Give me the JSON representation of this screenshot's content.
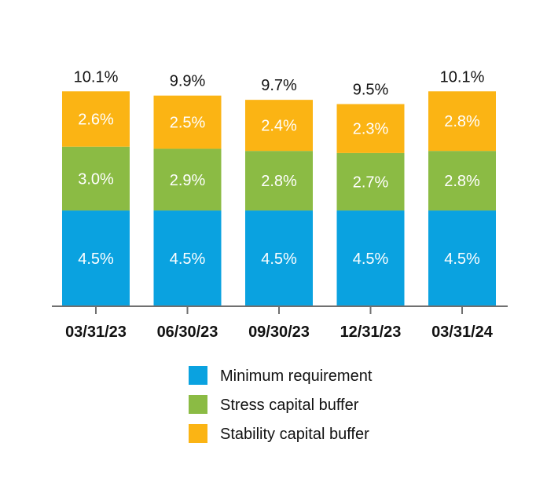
{
  "chart_data": {
    "type": "bar",
    "stacked": true,
    "categories": [
      "03/31/23",
      "06/30/23",
      "09/30/23",
      "12/31/23",
      "03/31/24"
    ],
    "series": [
      {
        "name": "Minimum requirement",
        "color": "#0aa2e0",
        "values": [
          4.5,
          4.5,
          4.5,
          4.5,
          4.5
        ],
        "labels": [
          "4.5%",
          "4.5%",
          "4.5%",
          "4.5%",
          "4.5%"
        ]
      },
      {
        "name": "Stress capital buffer",
        "color": "#8bbb44",
        "values": [
          3.0,
          2.9,
          2.8,
          2.7,
          2.8
        ],
        "labels": [
          "3.0%",
          "2.9%",
          "2.8%",
          "2.7%",
          "2.8%"
        ]
      },
      {
        "name": "Stability capital buffer",
        "color": "#fbb414",
        "values": [
          2.6,
          2.5,
          2.4,
          2.3,
          2.8
        ],
        "labels": [
          "2.6%",
          "2.5%",
          "2.4%",
          "2.3%",
          "2.8%"
        ]
      }
    ],
    "totals": [
      10.1,
      9.9,
      9.7,
      9.5,
      10.1
    ],
    "total_labels": [
      "10.1%",
      "9.9%",
      "9.7%",
      "9.5%",
      "10.1%"
    ],
    "ylim": [
      0,
      10.1
    ],
    "grid": false,
    "legend_position": "bottom"
  }
}
